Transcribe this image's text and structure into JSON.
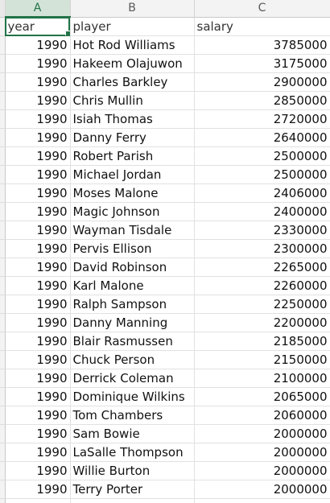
{
  "columns": [
    "A",
    "B",
    "C"
  ],
  "header": {
    "year": "year",
    "player": "player",
    "salary": "salary"
  },
  "rows": [
    {
      "year": "1990",
      "player": "Hot Rod Williams",
      "salary": "3785000"
    },
    {
      "year": "1990",
      "player": "Hakeem Olajuwon",
      "salary": "3175000"
    },
    {
      "year": "1990",
      "player": "Charles Barkley",
      "salary": "2900000"
    },
    {
      "year": "1990",
      "player": "Chris Mullin",
      "salary": "2850000"
    },
    {
      "year": "1990",
      "player": "Isiah Thomas",
      "salary": "2720000"
    },
    {
      "year": "1990",
      "player": "Danny Ferry",
      "salary": "2640000"
    },
    {
      "year": "1990",
      "player": "Robert Parish",
      "salary": "2500000"
    },
    {
      "year": "1990",
      "player": "Michael Jordan",
      "salary": "2500000"
    },
    {
      "year": "1990",
      "player": "Moses Malone",
      "salary": "2406000"
    },
    {
      "year": "1990",
      "player": "Magic Johnson",
      "salary": "2400000"
    },
    {
      "year": "1990",
      "player": "Wayman Tisdale",
      "salary": "2330000"
    },
    {
      "year": "1990",
      "player": "Pervis Ellison",
      "salary": "2300000"
    },
    {
      "year": "1990",
      "player": "David Robinson",
      "salary": "2265000"
    },
    {
      "year": "1990",
      "player": "Karl Malone",
      "salary": "2260000"
    },
    {
      "year": "1990",
      "player": "Ralph Sampson",
      "salary": "2250000"
    },
    {
      "year": "1990",
      "player": "Danny Manning",
      "salary": "2200000"
    },
    {
      "year": "1990",
      "player": "Blair Rasmussen",
      "salary": "2185000"
    },
    {
      "year": "1990",
      "player": "Chuck Person",
      "salary": "2150000"
    },
    {
      "year": "1990",
      "player": "Derrick Coleman",
      "salary": "2100000"
    },
    {
      "year": "1990",
      "player": "Dominique Wilkins",
      "salary": "2065000"
    },
    {
      "year": "1990",
      "player": "Tom Chambers",
      "salary": "2060000"
    },
    {
      "year": "1990",
      "player": "Sam Bowie",
      "salary": "2000000"
    },
    {
      "year": "1990",
      "player": "LaSalle Thompson",
      "salary": "2000000"
    },
    {
      "year": "1990",
      "player": "Willie Burton",
      "salary": "2000000"
    },
    {
      "year": "1990",
      "player": "Terry Porter",
      "salary": "2000000"
    }
  ]
}
